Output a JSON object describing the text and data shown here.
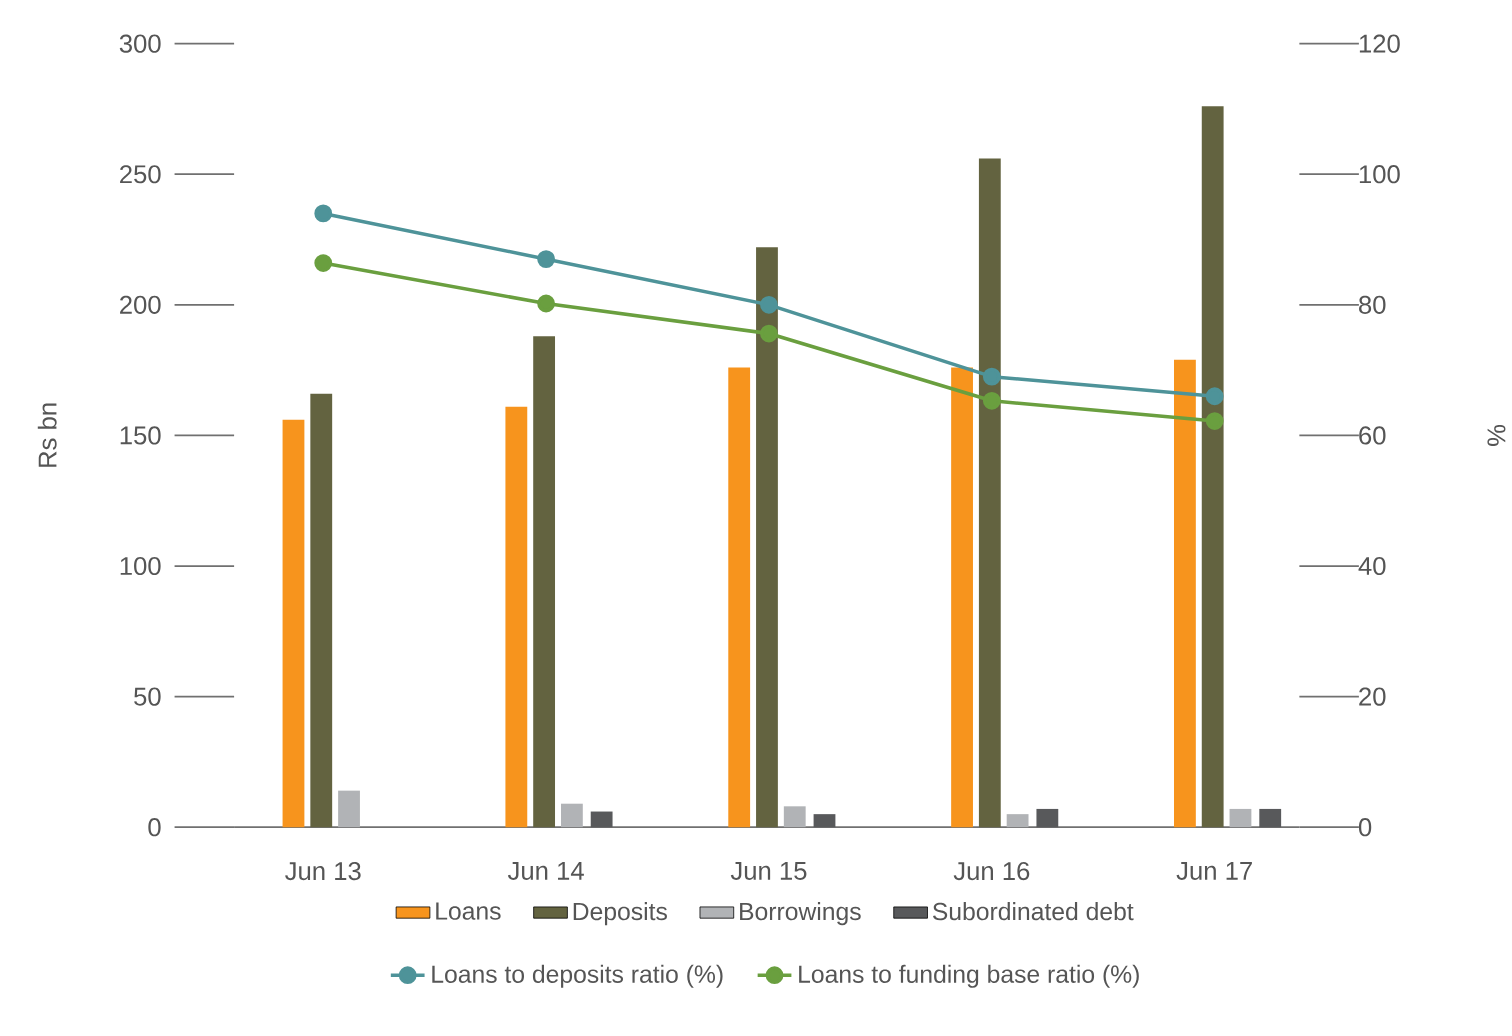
{
  "chart_data": {
    "type": "bar",
    "ylabel": "Rs bn",
    "y2label": "%",
    "categories": [
      "Jun 13",
      "Jun 14",
      "Jun 15",
      "Jun 16",
      "Jun 17"
    ],
    "ylim": [
      0,
      300
    ],
    "yticks": [
      0,
      50,
      100,
      150,
      200,
      250,
      300
    ],
    "y2lim": [
      0,
      120
    ],
    "y2ticks": [
      0,
      20,
      40,
      60,
      80,
      100,
      120
    ],
    "legend": "bottom",
    "grid": false,
    "marker": "circle",
    "series": [
      {
        "name": "Loans",
        "color": "#f7941d",
        "values": [
          156,
          161,
          176,
          176,
          179
        ]
      },
      {
        "name": "Deposits",
        "color": "#636340",
        "values": [
          166,
          188,
          222,
          256,
          276
        ]
      },
      {
        "name": "Borrowings",
        "color": "#b1b3b6",
        "values": [
          14,
          9,
          8,
          5,
          7
        ]
      },
      {
        "name": "Subordinated debt",
        "color": "#58595b",
        "values": [
          null,
          6,
          5,
          7,
          7
        ]
      },
      {
        "name": "Loans to deposits ratio (%)",
        "type": "line",
        "axis": "y2",
        "color": "#4e9399",
        "values": [
          94,
          87,
          80,
          69,
          66
        ]
      },
      {
        "name": "Loans to funding base ratio (%)",
        "type": "line",
        "axis": "y2",
        "color": "#6a9f3f",
        "values": [
          86.4,
          80.2,
          75.6,
          65.3,
          62.2
        ]
      }
    ]
  }
}
